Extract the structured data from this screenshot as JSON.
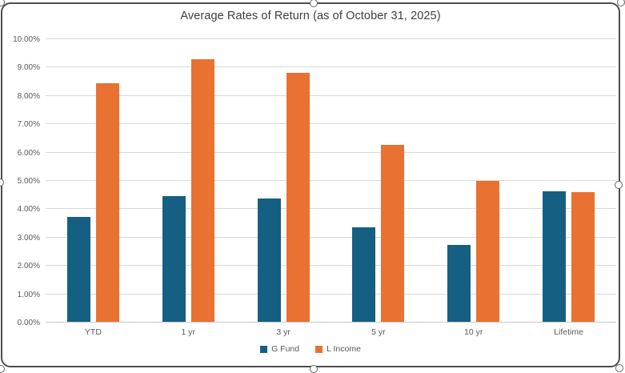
{
  "chart_data": {
    "type": "bar",
    "title": "Average Rates of Return (as of October 31, 2025)",
    "categories": [
      "YTD",
      "1 yr",
      "3 yr",
      "5 yr",
      "10 yr",
      "Lifetime"
    ],
    "series": [
      {
        "name": "G Fund",
        "color": "#156082",
        "values": [
          3.72,
          4.45,
          4.35,
          3.35,
          2.73,
          4.62
        ]
      },
      {
        "name": "L Income",
        "color": "#E97132",
        "values": [
          8.43,
          9.3,
          8.8,
          6.25,
          5.0,
          4.59
        ]
      }
    ],
    "xlabel": "",
    "ylabel": "",
    "ylim": [
      0,
      10
    ],
    "ytick_interval": 1,
    "ytick_labels": [
      "0.00%",
      "1.00%",
      "2.00%",
      "3.00%",
      "4.00%",
      "5.00%",
      "6.00%",
      "7.00%",
      "8.00%",
      "9.00%",
      "10.00%"
    ],
    "grid": true,
    "legend_position": "bottom"
  },
  "colors": {
    "series_g_fund": "#156082",
    "series_l_income": "#E97132",
    "gridline": "#D9D9D9",
    "axis_text": "#595959",
    "title_text": "#3F3F3F",
    "chart_border": "#4D4D4D",
    "background": "#FFFFFF"
  }
}
